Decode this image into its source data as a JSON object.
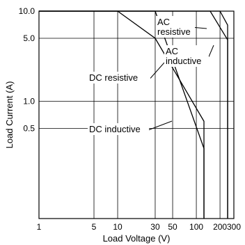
{
  "colors": {
    "background": "#ffffff",
    "line": "#000000",
    "grid": "#000000",
    "annotation_box": "#ffffff"
  },
  "chart_data": {
    "type": "line",
    "title": "",
    "xlabel": "Load Voltage (V)",
    "ylabel": "Load Current (A)",
    "xscale": "log",
    "yscale": "log",
    "xlim": [
      1,
      300
    ],
    "ylim": [
      0.05,
      10
    ],
    "grid": true,
    "x_ticks": [
      {
        "value": 1,
        "label": "1"
      },
      {
        "value": 5,
        "label": "5"
      },
      {
        "value": 10,
        "label": "10"
      },
      {
        "value": 30,
        "label": "30"
      },
      {
        "value": 50,
        "label": "50"
      },
      {
        "value": 100,
        "label": "100"
      },
      {
        "value": 200,
        "label": "200"
      },
      {
        "value": 300,
        "label": "300"
      }
    ],
    "y_ticks": [
      {
        "value": 10,
        "label": "10.0"
      },
      {
        "value": 5,
        "label": "5.0"
      },
      {
        "value": 1,
        "label": "1.0"
      },
      {
        "value": 0.5,
        "label": "0.5"
      }
    ],
    "x_grid": [
      5,
      10,
      30,
      50,
      100,
      200
    ],
    "y_grid": [
      0.5,
      1,
      5
    ],
    "series": [
      {
        "name": "DC resistive",
        "x": [
          1,
          10,
          30,
          125,
          125
        ],
        "y": [
          10,
          10,
          5,
          0.6,
          0.05
        ]
      },
      {
        "name": "DC inductive",
        "x": [
          1,
          30,
          125,
          125
        ],
        "y": [
          10,
          10,
          0.3,
          0.05
        ]
      },
      {
        "name": "AC resistive",
        "x": [
          1,
          200,
          250,
          250
        ],
        "y": [
          10,
          10,
          7,
          0.05
        ]
      },
      {
        "name": "AC inductive",
        "x": [
          1,
          150,
          250,
          250
        ],
        "y": [
          10,
          10,
          4.8,
          0.05
        ]
      }
    ],
    "annotations": [
      {
        "series": "DC resistive",
        "lines": [
          "DC resistive"
        ]
      },
      {
        "series": "DC inductive",
        "lines": [
          "DC inductive"
        ]
      },
      {
        "series": "AC resistive",
        "lines": [
          "AC",
          "resistive"
        ]
      },
      {
        "series": "AC inductive",
        "lines": [
          "AC",
          "inductive"
        ]
      }
    ]
  }
}
